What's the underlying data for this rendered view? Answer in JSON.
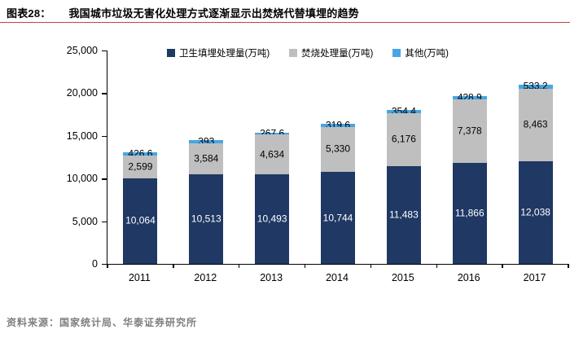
{
  "header": {
    "fig_label": "图表28：",
    "title": "我国城市垃圾无害化处理方式逐渐显示出焚烧代替填埋的趋势"
  },
  "footer": {
    "source": "资料来源：国家统计局、华泰证券研究所"
  },
  "colors": {
    "landfill": "#1F3864",
    "incineration": "#BFBFBF",
    "other": "#47A5E5",
    "title_rule": "#C9443C",
    "axis": "#000000",
    "source_text": "#7F7F7F"
  },
  "chart_data": {
    "type": "bar",
    "stacked": true,
    "title": "我国城市垃圾无害化处理方式逐渐显示出焚烧代替填埋的趋势",
    "categories": [
      "2011",
      "2012",
      "2013",
      "2014",
      "2015",
      "2016",
      "2017"
    ],
    "series": [
      {
        "name": "卫生填埋处理量(万吨)",
        "color": "#1F3864",
        "label_color": "#FFFFFF",
        "values": [
          10064,
          10513,
          10493,
          10744,
          11483,
          11866,
          12038
        ],
        "labels": [
          "10,064",
          "10,513",
          "10,493",
          "10,744",
          "11,483",
          "11,866",
          "12,038"
        ]
      },
      {
        "name": "焚烧处理量(万吨)",
        "color": "#BFBFBF",
        "label_color": "#000000",
        "values": [
          2599,
          3584,
          4634,
          5330,
          6176,
          7378,
          8463
        ],
        "labels": [
          "2,599",
          "3,584",
          "4,634",
          "5,330",
          "6,176",
          "7,378",
          "8,463"
        ]
      },
      {
        "name": "其他(万吨)",
        "color": "#47A5E5",
        "label_color": "#000000",
        "values": [
          426.6,
          393,
          267.6,
          319.6,
          354.4,
          428.9,
          533.2
        ],
        "labels": [
          "426.6",
          "393",
          "267.6",
          "319.6",
          "354.4",
          "428.9",
          "533.2"
        ]
      }
    ],
    "xlabel": "",
    "ylabel": "",
    "ylim": [
      0,
      25000
    ],
    "yticks": [
      0,
      5000,
      10000,
      15000,
      20000,
      25000
    ],
    "ytick_labels": [
      "0",
      "5,000",
      "10,000",
      "15,000",
      "20,000",
      "25,000"
    ],
    "legend_position": "top",
    "grid": false
  }
}
